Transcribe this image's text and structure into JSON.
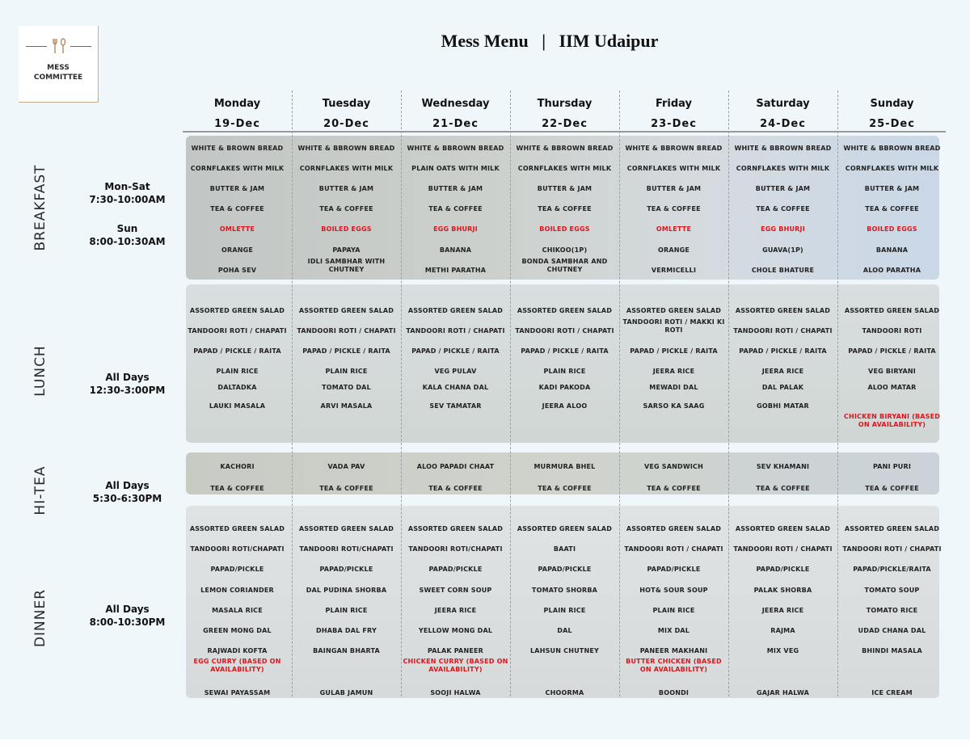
{
  "logo": {
    "line1": "MESS",
    "line2": "COMMITTEE",
    "icon": "fork-spoon-icon"
  },
  "title": "Mess Menu   |   IIM Udaipur",
  "days": [
    {
      "name": "Monday",
      "date": "19-Dec"
    },
    {
      "name": "Tuesday",
      "date": "20-Dec"
    },
    {
      "name": "Wednesday",
      "date": "21-Dec"
    },
    {
      "name": "Thursday",
      "date": "22-Dec"
    },
    {
      "name": "Friday",
      "date": "23-Dec"
    },
    {
      "name": "Saturday",
      "date": "24-Dec"
    },
    {
      "name": "Sunday",
      "date": "25-Dec"
    }
  ],
  "sections": {
    "breakfast": {
      "label": "BREAKFAST",
      "timing1_title": "Mon-Sat",
      "timing1_time": "7:30-10:00AM",
      "timing2_title": "Sun",
      "timing2_time": "8:00-10:30AM",
      "rows": [
        [
          "WHITE & BROWN BREAD",
          "WHITE & BBROWN BREAD",
          "WHITE & BBROWN BREAD",
          "WHITE & BBROWN BREAD",
          "WHITE & BBROWN BREAD",
          "WHITE & BBROWN BREAD",
          "WHITE & BBROWN BREAD"
        ],
        [
          "CORNFLAKES WITH MILK",
          "CORNFLAKES WITH MILK",
          "PLAIN OATS WITH MILK",
          "CORNFLAKES WITH MILK",
          "CORNFLAKES WITH MILK",
          "CORNFLAKES WITH MILK",
          "CORNFLAKES WITH MILK"
        ],
        [
          "BUTTER & JAM",
          "BUTTER & JAM",
          "BUTTER & JAM",
          "BUTTER & JAM",
          "BUTTER & JAM",
          "BUTTER & JAM",
          "BUTTER & JAM"
        ],
        [
          "TEA & COFFEE",
          "TEA & COFFEE",
          "TEA & COFFEE",
          "TEA & COFFEE",
          "TEA & COFFEE",
          "TEA & COFFEE",
          "TEA & COFFEE"
        ],
        [
          "OMLETTE",
          "BOILED EGGS",
          "EGG BHURJI",
          "BOILED EGGS",
          "OMLETTE",
          "EGG BHURJI",
          "BOILED EGGS"
        ],
        [
          "ORANGE",
          "PAPAYA",
          "BANANA",
          "CHIKOO(1P)",
          "ORANGE",
          "GUAVA(1P)",
          "BANANA"
        ],
        [
          "POHA SEV",
          "IDLI SAMBHAR WITH CHUTNEY",
          "METHI PARATHA",
          "BONDA SAMBHAR AND CHUTNEY",
          "VERMICELLI",
          "CHOLE BHATURE",
          "ALOO PARATHA"
        ]
      ]
    },
    "lunch": {
      "label": "LUNCH",
      "timing_title": "All Days",
      "timing_time": "12:30-3:00PM",
      "rows": [
        [
          "ASSORTED GREEN SALAD",
          "ASSORTED GREEN SALAD",
          "ASSORTED GREEN SALAD",
          "ASSORTED GREEN SALAD",
          "ASSORTED GREEN SALAD",
          "ASSORTED GREEN SALAD",
          "ASSORTED GREEN SALAD"
        ],
        [
          "TANDOORI ROTI / CHAPATI",
          "TANDOORI ROTI / CHAPATI",
          "TANDOORI ROTI / CHAPATI",
          "TANDOORI ROTI / CHAPATI",
          "TANDOORI ROTI / MAKKI KI ROTI",
          "TANDOORI ROTI / CHAPATI",
          "TANDOORI ROTI"
        ],
        [
          "PAPAD / PICKLE / RAITA",
          "PAPAD / PICKLE / RAITA",
          "PAPAD / PICKLE / RAITA",
          "PAPAD / PICKLE / RAITA",
          "PAPAD / PICKLE / RAITA",
          "PAPAD / PICKLE / RAITA",
          "PAPAD / PICKLE / RAITA"
        ],
        [
          "PLAIN RICE",
          "PLAIN RICE",
          "VEG PULAV",
          "PLAIN RICE",
          "JEERA RICE",
          "JEERA RICE",
          "VEG BIRYANI"
        ],
        [
          "DALTADKA",
          "TOMATO DAL",
          "KALA CHANA DAL",
          "KADI PAKODA",
          "MEWADI DAL",
          "DAL PALAK",
          "ALOO MATAR"
        ],
        [
          "LAUKI MASALA",
          "ARVI MASALA",
          "SEV TAMATAR",
          "JEERA ALOO",
          "SARSO KA SAAG",
          "GOBHI MATAR",
          ""
        ]
      ],
      "extra_sunday": "CHICKEN BIRYANI (BASED ON AVAILABILITY)"
    },
    "hitea": {
      "label": "HI-TEA",
      "timing_title": "All Days",
      "timing_time": "5:30-6:30PM",
      "rows": [
        [
          "KACHORI",
          "VADA PAV",
          "ALOO PAPADI CHAAT",
          "MURMURA BHEL",
          "VEG SANDWICH",
          "SEV KHAMANI",
          "PANI PURI"
        ],
        [
          "TEA & COFFEE",
          "TEA & COFFEE",
          "TEA & COFFEE",
          "TEA & COFFEE",
          "TEA & COFFEE",
          "TEA & COFFEE",
          "TEA & COFFEE"
        ]
      ]
    },
    "dinner": {
      "label": "DINNER",
      "timing_title": "All Days",
      "timing_time": "8:00-10:30PM",
      "rows": [
        [
          "ASSORTED GREEN SALAD",
          "ASSORTED GREEN SALAD",
          "ASSORTED GREEN SALAD",
          "ASSORTED GREEN SALAD",
          "ASSORTED GREEN SALAD",
          "ASSORTED GREEN SALAD",
          "ASSORTED GREEN SALAD"
        ],
        [
          "TANDOORI ROTI/CHAPATI",
          "TANDOORI ROTI/CHAPATI",
          "TANDOORI ROTI/CHAPATI",
          "BAATI",
          "TANDOORI ROTI / CHAPATI",
          "TANDOORI ROTI / CHAPATI",
          "TANDOORI ROTI / CHAPATI"
        ],
        [
          "PAPAD/PICKLE",
          "PAPAD/PICKLE",
          "PAPAD/PICKLE",
          "PAPAD/PICKLE",
          "PAPAD/PICKLE",
          "PAPAD/PICKLE",
          "PAPAD/PICKLE/RAITA"
        ],
        [
          "LEMON CORIANDER",
          "DAL PUDINA SHORBA",
          "SWEET CORN SOUP",
          "TOMATO SHORBA",
          "HOT& SOUR SOUP",
          "PALAK SHORBA",
          "TOMATO SOUP"
        ],
        [
          "MASALA RICE",
          "PLAIN RICE",
          "JEERA RICE",
          "PLAIN RICE",
          "PLAIN RICE",
          "JEERA RICE",
          "TOMATO RICE"
        ],
        [
          "GREEN MONG DAL",
          "DHABA DAL FRY",
          "YELLOW MONG DAL",
          "DAL",
          "MIX DAL",
          "RAJMA",
          "UDAD CHANA DAL"
        ],
        [
          "RAJWADI KOFTA",
          "BAINGAN BHARTA",
          "PALAK PANEER",
          "LAHSUN CHUTNEY",
          "PANEER MAKHANI",
          "MIX VEG",
          "BHINDI MASALA"
        ],
        [
          "EGG CURRY (BASED ON AVAILABILITY)",
          "",
          "CHICKEN CURRY (BASED ON AVAILABILITY)",
          "",
          "BUTTER CHICKEN (BASED ON AVAILABILITY)",
          "",
          ""
        ],
        [
          "SEWAI PAYASSAM",
          "GULAB JAMUN",
          "SOOJI HALWA",
          "CHOORMA",
          "BOONDI",
          "GAJAR HALWA",
          "ICE CREAM"
        ]
      ]
    }
  },
  "colors": {
    "red_item": "#e0141b",
    "text": "#222222",
    "background": "#eff7fa"
  }
}
